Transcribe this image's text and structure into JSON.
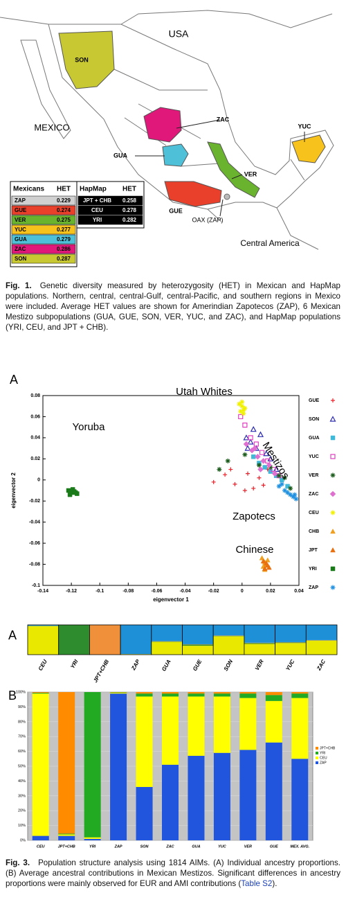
{
  "map": {
    "labels": [
      "USA",
      "MEXICO",
      "SON",
      "ZAC",
      "YUC",
      "GUA",
      "VER",
      "GUE",
      "OAX (ZAP)",
      "Central America"
    ],
    "mexicans": {
      "header": [
        "Mexicans",
        "HET"
      ],
      "rows": [
        {
          "pop": "ZAP",
          "het": 0.229,
          "color": "#d0d0d0"
        },
        {
          "pop": "GUE",
          "het": 0.274,
          "color": "#e8402a"
        },
        {
          "pop": "VER",
          "het": 0.275,
          "color": "#6ab32e"
        },
        {
          "pop": "YUC",
          "het": 0.277,
          "color": "#f6c21b"
        },
        {
          "pop": "GUA",
          "het": 0.279,
          "color": "#4ec0d8"
        },
        {
          "pop": "ZAC",
          "het": 0.286,
          "color": "#e0187a"
        },
        {
          "pop": "SON",
          "het": 0.287,
          "color": "#c8c832"
        }
      ]
    },
    "hapmap": {
      "header": [
        "HapMap",
        "HET"
      ],
      "rows": [
        {
          "pop": "JPT + CHB",
          "het": 0.258
        },
        {
          "pop": "CEU",
          "het": 0.278
        },
        {
          "pop": "YRI",
          "het": 0.282
        }
      ]
    }
  },
  "figure1_caption": {
    "label": "Fig. 1.",
    "text": "Genetic diversity measured by heterozygosity (HET) in Mexican and HapMap populations. Northern, central, central-Gulf, central-Pacific, and southern regions in Mexico were included. Average HET values are shown for Amerindian Zapotecos (ZAP), 6 Mexican Mestizo subpopulations (GUA, GUE, SON, VER, YUC, and ZAC), and HapMap populations (YRI, CEU, and JPT + CHB)."
  },
  "chart_data": [
    {
      "type": "scatter",
      "panel": "A",
      "x_label": "eigenvector 1",
      "y_label": "eigenvector 2",
      "xlim": [
        -0.14,
        0.04
      ],
      "xticks": [
        -0.14,
        -0.12,
        -0.1,
        -0.08,
        -0.06,
        -0.04,
        -0.02,
        0,
        0.02,
        0.04
      ],
      "ylim": [
        -0.1,
        0.08
      ],
      "yticks": [
        -0.1,
        -0.08,
        -0.06,
        -0.04,
        -0.02,
        0,
        0.02,
        0.04,
        0.06,
        0.08
      ],
      "annotations": [
        "Utah Whites",
        "Mestizos",
        "Yoruba",
        "Zapotecs",
        "Chinese"
      ],
      "series": [
        {
          "name": "GUE",
          "color": "#e8202a",
          "marker": "plus",
          "x": [
            -0.02,
            -0.012,
            -0.005,
            0.002,
            0.008,
            0.012,
            0.018,
            0.004,
            -0.008,
            0.015
          ],
          "values": [
            -0.002,
            0.005,
            -0.004,
            -0.01,
            -0.008,
            0.002,
            0.01,
            0.006,
            0.01,
            -0.005
          ]
        },
        {
          "name": "SON",
          "color": "#2a2ab0",
          "marker": "triangle-open",
          "x": [
            0.003,
            0.006,
            0.01,
            0.013,
            0.017,
            0.02,
            0.024,
            0.008,
            0.004
          ],
          "values": [
            0.04,
            0.036,
            0.03,
            0.043,
            0.025,
            0.02,
            0.01,
            0.048,
            0.03
          ]
        },
        {
          "name": "GUA",
          "color": "#40b8d8",
          "marker": "square",
          "x": [
            0.008,
            0.012,
            0.016,
            0.02,
            0.024,
            0.028,
            0.032
          ],
          "values": [
            0.022,
            0.016,
            0.012,
            0.008,
            0.004,
            0,
            -0.006
          ]
        },
        {
          "name": "YUC",
          "color": "#e040c0",
          "marker": "square-open",
          "x": [
            -0.001,
            0.002,
            0.006,
            0.01,
            0.014,
            0.018,
            0.022,
            0.026
          ],
          "values": [
            0.06,
            0.052,
            0.04,
            0.034,
            0.026,
            0.018,
            0.01,
            0.004
          ]
        },
        {
          "name": "VER",
          "color": "#1a5a1a",
          "marker": "star",
          "x": [
            -0.016,
            -0.01,
            0.002,
            0.012,
            0.02,
            0.026,
            0.03,
            0.034
          ],
          "values": [
            0.01,
            0.018,
            0.024,
            0.014,
            0.012,
            0.004,
            0.002,
            -0.008
          ]
        },
        {
          "name": "ZAC",
          "color": "#e070d0",
          "marker": "diamond",
          "x": [
            0.003,
            0.007,
            0.011,
            0.015,
            0.019,
            0.023,
            0.009,
            0.013
          ],
          "values": [
            0.034,
            0.028,
            0.022,
            0.018,
            0.014,
            0.006,
            0.03,
            0.01
          ]
        },
        {
          "name": "CEU",
          "color": "#f0f000",
          "marker": "star",
          "x": [
            -0.002,
            0,
            0.001,
            0.002,
            0,
            0.001,
            -0.001
          ],
          "values": [
            0.072,
            0.07,
            0.066,
            0.068,
            0.074,
            0.063,
            0.065
          ]
        },
        {
          "name": "CHB",
          "color": "#f0a020",
          "marker": "triangle",
          "x": [
            0.014,
            0.016,
            0.018,
            0.015,
            0.017,
            0.016
          ],
          "values": [
            -0.074,
            -0.078,
            -0.076,
            -0.082,
            -0.08,
            -0.085
          ]
        },
        {
          "name": "JPT",
          "color": "#e87010",
          "marker": "triangle",
          "x": [
            0.015,
            0.017,
            0.019,
            0.016,
            0.018
          ],
          "values": [
            -0.077,
            -0.079,
            -0.083,
            -0.084,
            -0.081
          ]
        },
        {
          "name": "YRI",
          "color": "#1a7a1a",
          "marker": "square",
          "x": [
            -0.122,
            -0.12,
            -0.118,
            -0.116,
            -0.119,
            -0.121,
            -0.117
          ],
          "values": [
            -0.01,
            -0.012,
            -0.011,
            -0.013,
            -0.009,
            -0.014,
            -0.012
          ]
        },
        {
          "name": "ZAP",
          "color": "#2090e0",
          "marker": "asterisk",
          "x": [
            0.026,
            0.03,
            0.034,
            0.036,
            0.038,
            0.032,
            0.028,
            0.037
          ],
          "values": [
            -0.006,
            -0.01,
            -0.014,
            -0.016,
            -0.018,
            -0.012,
            -0.004,
            -0.014
          ]
        }
      ]
    },
    {
      "type": "structure",
      "panel": "A",
      "categories": [
        "CEU",
        "YRI",
        "JPT+CHB",
        "ZAP",
        "GUA",
        "GUE",
        "SON",
        "VER",
        "YUC",
        "ZAC"
      ],
      "series": [
        {
          "color": "#e8e800",
          "values": [
            0.96,
            0,
            0,
            0.02,
            0.43,
            0.3,
            0.62,
            0.36,
            0.39,
            0.47
          ]
        },
        {
          "color": "#2e8b2e",
          "values": [
            0.01,
            1,
            0,
            0,
            0.01,
            0.04,
            0.01,
            0.03,
            0.02,
            0.01
          ]
        },
        {
          "color": "#f0903a",
          "values": [
            0,
            0,
            1,
            0,
            0.01,
            0.01,
            0.01,
            0.01,
            0.01,
            0.01
          ]
        },
        {
          "color": "#1e90d8",
          "values": [
            0.03,
            0,
            0,
            0.98,
            0.55,
            0.65,
            0.36,
            0.6,
            0.58,
            0.51
          ]
        }
      ]
    },
    {
      "type": "stacked-bar",
      "panel": "B",
      "categories": [
        "CEU",
        "JPT+CHB",
        "YRI",
        "ZAP",
        "SON",
        "ZAC",
        "GUA",
        "YUC",
        "VER",
        "GUE",
        "MEX. AVG."
      ],
      "ylim": [
        0,
        100
      ],
      "yticks": [
        {
          "value": 0,
          "label": "0%"
        },
        {
          "value": 10,
          "label": "10%"
        },
        {
          "value": 20,
          "label": "20%"
        },
        {
          "value": 30,
          "label": "30%"
        },
        {
          "value": 40,
          "label": "40%"
        },
        {
          "value": 50,
          "label": "50%"
        },
        {
          "value": 60,
          "label": "60%"
        },
        {
          "value": 70,
          "label": "70%"
        },
        {
          "value": 80,
          "label": "80%"
        },
        {
          "value": 90,
          "label": "90%"
        },
        {
          "value": 100,
          "label": "100%"
        }
      ],
      "series": [
        {
          "name": "ZAP",
          "color": "#2255dd",
          "values": [
            3,
            3,
            1,
            99,
            36,
            51,
            57,
            59,
            61,
            66,
            55
          ]
        },
        {
          "name": "CEU",
          "color": "#ffff00",
          "values": [
            96,
            1,
            1,
            0.5,
            61,
            46,
            40,
            38,
            35,
            28,
            41
          ]
        },
        {
          "name": "YRI",
          "color": "#22aa22",
          "values": [
            0.5,
            0.5,
            98,
            0.3,
            2,
            2,
            2,
            2,
            3,
            4,
            3
          ]
        },
        {
          "name": "JPT+CHB",
          "color": "#ff8c00",
          "values": [
            0.5,
            95.5,
            0,
            0.2,
            1,
            1,
            1,
            1,
            1,
            2,
            1
          ]
        }
      ]
    }
  ],
  "figure3_caption": {
    "label": "Fig. 3.",
    "text": "Population structure analysis using 1814 AIMs. (A) Individual ancestry proportions. (B) Average ancestral contributions in Mexican Mestizos. Significant differences in ancestry proportions were mainly observed for EUR and AMI contributions (",
    "link": "Table S2",
    "text_after": ")."
  }
}
